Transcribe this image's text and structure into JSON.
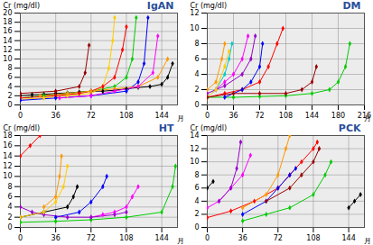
{
  "chart_data": [
    {
      "type": "line",
      "title": "IgAN",
      "y_label": "Cr (mg/dl)",
      "x_label": "月",
      "marker": "diamond",
      "grid": true,
      "xlim": [
        0,
        160
      ],
      "xticks": [
        0,
        36,
        72,
        108,
        144
      ],
      "ylim": [
        0,
        20
      ],
      "yticks": [
        0,
        2,
        4,
        6,
        8,
        10,
        12,
        14,
        16,
        18,
        20
      ],
      "series": [
        {
          "color": "#000000",
          "x": [
            0,
            12,
            24,
            36,
            48,
            60,
            72,
            84,
            96,
            108,
            120,
            132,
            144,
            150,
            155
          ],
          "values": [
            2,
            2.2,
            2.3,
            2.5,
            2.6,
            2.8,
            3,
            3,
            3.2,
            3.5,
            3.8,
            4,
            4.5,
            6,
            9
          ]
        },
        {
          "color": "#00cc00",
          "x": [
            0,
            24,
            48,
            72,
            96,
            108,
            114,
            118
          ],
          "values": [
            1.5,
            2,
            2.5,
            3,
            4,
            6,
            10,
            19
          ]
        },
        {
          "color": "#ffcc00",
          "x": [
            0,
            24,
            48,
            72,
            84,
            90,
            94,
            96
          ],
          "values": [
            1.2,
            1.5,
            2,
            2.5,
            4,
            8,
            14,
            19
          ]
        },
        {
          "color": "#ff0000",
          "x": [
            0,
            36,
            60,
            72,
            84,
            96,
            104,
            108
          ],
          "values": [
            1.5,
            2,
            2.5,
            3,
            4,
            6,
            12,
            17
          ]
        },
        {
          "color": "#0000ff",
          "x": [
            0,
            36,
            72,
            108,
            120,
            126,
            130
          ],
          "values": [
            1,
            1.5,
            2,
            3,
            5,
            9,
            19
          ]
        },
        {
          "color": "#ff9900",
          "x": [
            20,
            48,
            72,
            96,
            120,
            140,
            150
          ],
          "values": [
            2,
            2.5,
            3,
            3.5,
            4,
            6,
            10
          ]
        },
        {
          "color": "#ff00ff",
          "x": [
            40,
            72,
            96,
            120,
            135,
            140
          ],
          "values": [
            1.5,
            2,
            3,
            4,
            7,
            15
          ]
        },
        {
          "color": "#990000",
          "x": [
            0,
            36,
            60,
            66,
            70
          ],
          "values": [
            2.5,
            3,
            4,
            7,
            13
          ]
        }
      ]
    },
    {
      "type": "line",
      "title": "DM",
      "y_label": "Cr (mg/dl)",
      "x_label": "月",
      "marker": "diamond",
      "grid": true,
      "xlim": [
        0,
        216
      ],
      "xticks": [
        0,
        36,
        72,
        108,
        144,
        180,
        216
      ],
      "ylim": [
        0,
        12
      ],
      "yticks": [
        0,
        2,
        4,
        6,
        8,
        10,
        12
      ],
      "series": [
        {
          "color": "#00cccc",
          "x": [
            0,
            12,
            24,
            30,
            34
          ],
          "values": [
            1,
            2,
            4,
            6,
            8
          ]
        },
        {
          "color": "#ff0000",
          "x": [
            0,
            24,
            48,
            72,
            84,
            96,
            104
          ],
          "values": [
            1,
            1.5,
            2,
            3,
            5,
            8,
            10
          ]
        },
        {
          "color": "#ff00ff",
          "x": [
            12,
            24,
            36,
            48,
            56
          ],
          "values": [
            2,
            3,
            4,
            6,
            9
          ]
        },
        {
          "color": "#00cc00",
          "x": [
            0,
            36,
            72,
            108,
            144,
            168,
            180,
            190,
            196
          ],
          "values": [
            1,
            1,
            1.1,
            1.2,
            1.5,
            2,
            3,
            5,
            8
          ]
        },
        {
          "color": "#9900cc",
          "x": [
            0,
            24,
            48,
            60,
            66
          ],
          "values": [
            1.5,
            2.5,
            4,
            6,
            9
          ]
        },
        {
          "color": "#ffcc00",
          "x": [
            0,
            12,
            24,
            30
          ],
          "values": [
            1,
            2,
            5,
            7
          ]
        },
        {
          "color": "#0000ff",
          "x": [
            24,
            48,
            60,
            72,
            76
          ],
          "values": [
            1,
            2,
            3,
            5,
            8
          ]
        },
        {
          "color": "#ff9900",
          "x": [
            0,
            12,
            20,
            24
          ],
          "values": [
            2,
            3,
            6,
            8
          ]
        },
        {
          "color": "#990000",
          "x": [
            0,
            36,
            72,
            108,
            130,
            144,
            150
          ],
          "values": [
            1,
            1.5,
            1.5,
            1.5,
            2,
            3,
            5
          ]
        }
      ]
    },
    {
      "type": "line",
      "title": "HT",
      "y_label": "Cr (mg/dl)",
      "x_label": "月",
      "marker": "diamond",
      "grid": true,
      "xlim": [
        0,
        160
      ],
      "xticks": [
        0,
        36,
        72,
        108,
        144
      ],
      "ylim": [
        0,
        18
      ],
      "yticks": [
        0,
        2,
        4,
        6,
        8,
        10,
        12,
        14,
        16,
        18
      ],
      "series": [
        {
          "color": "#ff0000",
          "x": [
            0,
            10,
            20
          ],
          "values": [
            14,
            16,
            18
          ]
        },
        {
          "color": "#ff9900",
          "x": [
            24,
            36,
            40,
            42
          ],
          "values": [
            4,
            6,
            10,
            14
          ]
        },
        {
          "color": "#000000",
          "x": [
            0,
            24,
            48,
            54,
            58
          ],
          "values": [
            2,
            3,
            4,
            6,
            8
          ]
        },
        {
          "color": "#0000ff",
          "x": [
            36,
            60,
            72,
            84,
            88
          ],
          "values": [
            2,
            3,
            5,
            8,
            10
          ]
        },
        {
          "color": "#ff00ff",
          "x": [
            72,
            84,
            96,
            108,
            114,
            120
          ],
          "values": [
            2,
            2.5,
            3,
            4,
            6,
            8
          ]
        },
        {
          "color": "#00cc00",
          "x": [
            0,
            36,
            72,
            108,
            144,
            155,
            158
          ],
          "values": [
            1,
            1.2,
            1.5,
            2,
            3,
            8,
            12
          ]
        },
        {
          "color": "#9900cc",
          "x": [
            0,
            12,
            24,
            48,
            72,
            96,
            108
          ],
          "values": [
            4,
            3,
            2.5,
            2,
            2,
            2.5,
            3
          ]
        },
        {
          "color": "#ffcc00",
          "x": [
            0,
            24,
            36,
            44,
            48
          ],
          "values": [
            2,
            3,
            5,
            8,
            12
          ]
        }
      ]
    },
    {
      "type": "line",
      "title": "PCK",
      "y_label": "Cr (mg/dl)",
      "x_label": "月",
      "marker": "diamond",
      "grid": true,
      "xlim": [
        0,
        160
      ],
      "xticks": [
        0,
        36,
        72,
        108,
        144
      ],
      "ylim": [
        0,
        14
      ],
      "yticks": [
        0,
        2,
        4,
        6,
        8,
        10,
        12,
        14
      ],
      "series": [
        {
          "color": "#ff0000",
          "x": [
            0,
            24,
            48,
            72,
            84,
            96,
            108,
            112
          ],
          "values": [
            1.5,
            2.5,
            4,
            6,
            8,
            10,
            12,
            13
          ]
        },
        {
          "color": "#00cc00",
          "x": [
            36,
            60,
            84,
            108,
            120,
            126
          ],
          "values": [
            1,
            2,
            3,
            5,
            8,
            10
          ]
        },
        {
          "color": "#000000",
          "x": [
            0,
            6
          ],
          "values": [
            6,
            7
          ]
        },
        {
          "color": "#000000",
          "x": [
            144,
            150,
            156
          ],
          "values": [
            3,
            4,
            5
          ]
        },
        {
          "color": "#0000ff",
          "x": [
            36,
            60,
            72,
            84,
            90
          ],
          "values": [
            2,
            4,
            6,
            8,
            9
          ]
        },
        {
          "color": "#ff00ff",
          "x": [
            0,
            12,
            24,
            36,
            44
          ],
          "values": [
            3,
            4,
            6,
            8,
            11
          ]
        },
        {
          "color": "#ff9900",
          "x": [
            36,
            60,
            72,
            80,
            84
          ],
          "values": [
            3,
            5,
            8,
            12,
            14
          ]
        },
        {
          "color": "#9900cc",
          "x": [
            12,
            24,
            30,
            34
          ],
          "values": [
            4,
            6,
            9,
            13
          ]
        },
        {
          "color": "#990000",
          "x": [
            60,
            84,
            96,
            108,
            114
          ],
          "values": [
            4,
            6,
            8,
            10,
            12
          ]
        }
      ]
    }
  ]
}
